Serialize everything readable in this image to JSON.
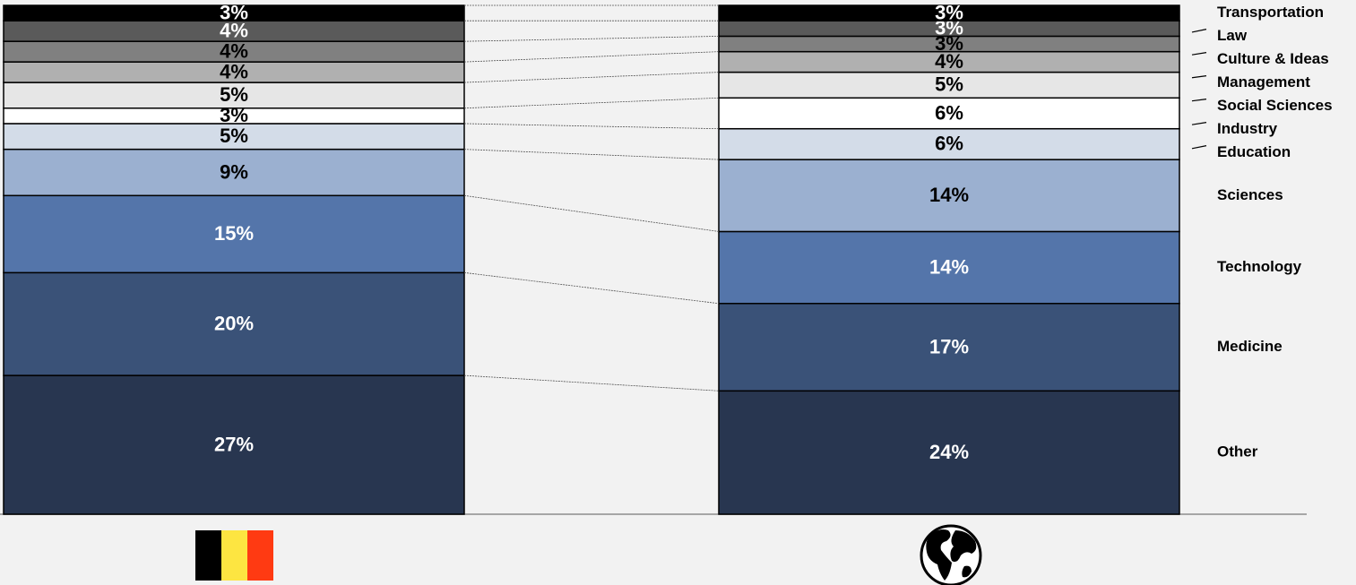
{
  "chart_data": {
    "type": "stacked_bar",
    "categories": [
      null,
      null
    ],
    "series": [
      {
        "name": "Other",
        "color": "#283650",
        "values": [
          27,
          24
        ],
        "value_labels": [
          "27%",
          "24%"
        ]
      },
      {
        "name": "Medicine",
        "color": "#3a5278",
        "values": [
          20,
          17
        ],
        "value_labels": [
          "20%",
          "17%"
        ]
      },
      {
        "name": "Technology",
        "color": "#5475aa",
        "values": [
          15,
          14
        ],
        "value_labels": [
          "15%",
          "14%"
        ]
      },
      {
        "name": "Sciences",
        "color": "#9bb0d0",
        "values": [
          9,
          14
        ],
        "value_labels": [
          "9%",
          "14%"
        ]
      },
      {
        "name": "Education",
        "color": "#d3dce8",
        "values": [
          5,
          6
        ],
        "value_labels": [
          "5%",
          "6%"
        ]
      },
      {
        "name": "Industry",
        "color": "#ffffff",
        "values": [
          3,
          6
        ],
        "value_labels": [
          "3%",
          "6%"
        ]
      },
      {
        "name": "Social Sciences",
        "color": "#e6e6e6",
        "values": [
          5,
          5
        ],
        "value_labels": [
          "5%",
          "5%"
        ]
      },
      {
        "name": "Management",
        "color": "#b0b0b0",
        "values": [
          4,
          4
        ],
        "value_labels": [
          "4%",
          "4%"
        ]
      },
      {
        "name": "Culture & Ideas",
        "color": "#808080",
        "values": [
          4,
          3
        ],
        "value_labels": [
          "4%",
          "3%"
        ]
      },
      {
        "name": "Law",
        "color": "#5a5a5a",
        "values": [
          4,
          3
        ],
        "value_labels": [
          "4%",
          "3%"
        ]
      },
      {
        "name": "Transportation",
        "color": "#000000",
        "values": [
          3,
          3
        ],
        "value_labels": [
          "3%",
          "3%"
        ]
      }
    ]
  }
}
